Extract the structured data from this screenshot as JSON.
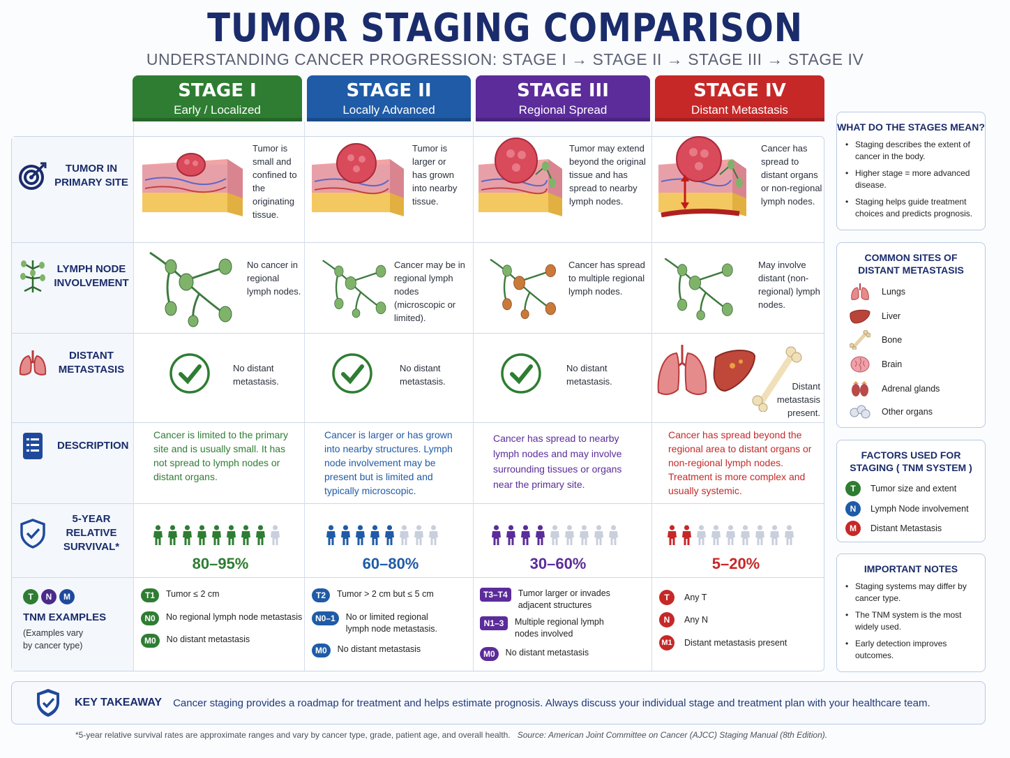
{
  "title": "TUMOR STAGING COMPARISON",
  "subtitle": "UNDERSTANDING CANCER PROGRESSION:  STAGE I → STAGE II → STAGE III → STAGE IV",
  "colors": {
    "stage1": "#2e7d32",
    "stage2": "#1f5ba6",
    "stage3": "#5b2c9a",
    "stage4": "#c62828",
    "navy": "#1a2c6b"
  },
  "stages": [
    {
      "name": "STAGE I",
      "subtitle": "Early / Localized"
    },
    {
      "name": "STAGE II",
      "subtitle": "Locally Advanced"
    },
    {
      "name": "STAGE III",
      "subtitle": "Regional Spread"
    },
    {
      "name": "STAGE IV",
      "subtitle": "Distant Metastasis"
    }
  ],
  "rows": {
    "tumor": "TUMOR IN PRIMARY SITE",
    "lymph": "LYMPH NODE INVOLVEMENT",
    "distant": "DISTANT METASTASIS",
    "description": "DESCRIPTION",
    "survival": "5-YEAR RELATIVE SURVIVAL*",
    "tnm": "TNM EXAMPLES",
    "tnm_note": "(Examples vary by cancer type)"
  },
  "tumor_text": [
    "Tumor is small and confined to the originating tissue.",
    "Tumor is larger or has grown into nearby tissue.",
    "Tumor may extend beyond the original tissue and has spread to nearby lymph nodes.",
    "Cancer has spread to distant organs or non-regional lymph nodes."
  ],
  "lymph_text": [
    "No cancer in regional lymph nodes.",
    "Cancer may be in regional lymph nodes (microscopic or limited).",
    "Cancer has spread to multiple regional lymph nodes.",
    "May involve distant (non-regional) lymph nodes."
  ],
  "distant_text": [
    "No distant metastasis.",
    "No distant metastasis.",
    "No distant metastasis.",
    "Distant metastasis present."
  ],
  "description_text": [
    "Cancer is limited to the primary site and is usually small. It has not spread to lymph nodes or distant organs.",
    "Cancer is larger or has grown into nearby structures. Lymph node involvement may be present but is limited and typically microscopic.",
    "Cancer has spread to nearby lymph nodes and may involve surrounding tissues or organs near the primary site.",
    "Cancer has spread beyond the regional area to distant organs or non-regional lymph nodes. Treatment is more complex and usually systemic."
  ],
  "survival": [
    {
      "label": "80–95%",
      "filled": 8,
      "total": 9
    },
    {
      "label": "60–80%",
      "filled": 5,
      "total": 8
    },
    {
      "label": "30–60%",
      "filled": 4,
      "total": 9
    },
    {
      "label": "5–20%",
      "filled": 2,
      "total": 9
    }
  ],
  "tnm_letters": [
    "T",
    "N",
    "M"
  ],
  "tnm": [
    [
      {
        "code": "T1",
        "text": "Tumor ≤ 2 cm"
      },
      {
        "code": "N0",
        "text": "No regional lymph node metastasis"
      },
      {
        "code": "M0",
        "text": "No distant metastasis"
      }
    ],
    [
      {
        "code": "T2",
        "text": "Tumor > 2 cm but ≤ 5 cm"
      },
      {
        "code": "N0–1",
        "text": "No or limited regional lymph node metastasis."
      },
      {
        "code": "M0",
        "text": "No distant metastasis"
      }
    ],
    [
      {
        "code": "T3–T4",
        "text": "Tumor larger or invades adjacent structures"
      },
      {
        "code": "N1–3",
        "text": "Multiple regional lymph nodes involved"
      },
      {
        "code": "M0",
        "text": "No distant metastasis"
      }
    ],
    [
      {
        "code": "T",
        "text": "Any T"
      },
      {
        "code": "N",
        "text": "Any N"
      },
      {
        "code": "M1",
        "text": "Distant metastasis present"
      }
    ]
  ],
  "panels": {
    "meaning_title": "WHAT DO THE STAGES MEAN?",
    "meaning": [
      "Staging describes the extent of cancer in the body.",
      "Higher stage = more advanced disease.",
      "Staging helps guide treatment choices and predicts prognosis."
    ],
    "sites_title": "COMMON SITES OF DISTANT METASTASIS",
    "sites": [
      "Lungs",
      "Liver",
      "Bone",
      "Brain",
      "Adrenal glands",
      "Other organs"
    ],
    "factors_title": "FACTORS USED FOR STAGING ( TNM SYSTEM )",
    "factors": [
      {
        "letter": "T",
        "text": "Tumor size and extent"
      },
      {
        "letter": "N",
        "text": "Lymph Node involvement"
      },
      {
        "letter": "M",
        "text": "Distant Metastasis"
      }
    ],
    "notes_title": "IMPORTANT NOTES",
    "notes": [
      "Staging systems may differ by cancer type.",
      "The TNM system is the most widely used.",
      "Early detection improves outcomes."
    ]
  },
  "takeaway": {
    "label": "KEY TAKEAWAY",
    "text": "Cancer staging provides a roadmap for treatment and helps estimate prognosis. Always discuss your individual stage and treatment plan with your healthcare team."
  },
  "footnote": {
    "main": "*5-year relative survival rates are approximate ranges and vary by cancer type, grade, patient age, and overall health.",
    "source": "Source: American Joint Committee on Cancer (AJCC) Staging Manual (8th Edition)."
  }
}
